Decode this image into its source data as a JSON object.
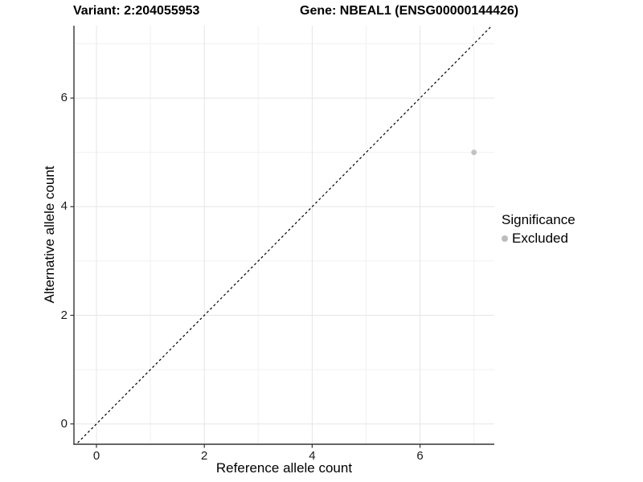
{
  "chart_data": {
    "type": "scatter",
    "title_parts": [
      "Variant: 2:204055953",
      "Gene: NBEAL1 (ENSG00000144426)"
    ],
    "xlabel": "Reference allele count",
    "ylabel": "Alternative allele count",
    "xlim": [
      -0.4,
      7.4
    ],
    "ylim": [
      -0.37,
      7.33
    ],
    "x_major_ticks": [
      0,
      2,
      4,
      6
    ],
    "x_minor_ticks": [
      1,
      3,
      5,
      7
    ],
    "y_major_ticks": [
      0,
      2,
      4,
      6
    ],
    "y_minor_ticks": [
      1,
      3,
      5,
      7
    ],
    "grid": true,
    "points": [
      {
        "x": 7,
        "y": 5,
        "series": "Excluded"
      }
    ],
    "reference_line": {
      "kind": "identity y=x",
      "style": "dashed"
    },
    "legend": {
      "title": "Significance",
      "position": "right",
      "items": [
        {
          "label": "Excluded",
          "color": "#bdbdbd"
        }
      ]
    },
    "colors": {
      "background": "#ffffff",
      "point": "#c2c2c2",
      "grid_major": "#e5e5e5",
      "grid_minor": "#f1f1f1",
      "axis_line": "#333333",
      "tick_mark": "#333333",
      "tick_label": "#1a1a1a",
      "reference_line": "#000000"
    }
  }
}
